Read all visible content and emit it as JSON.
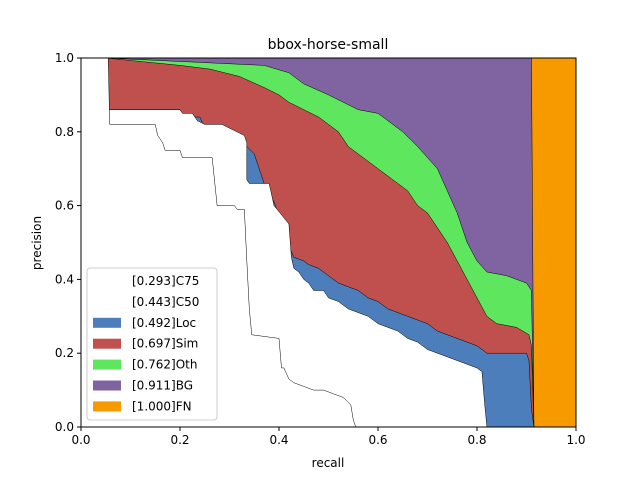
{
  "chart_data": {
    "type": "area",
    "title": "bbox-horse-small",
    "xlabel": "recall",
    "ylabel": "precision",
    "xlim": [
      0.0,
      1.0
    ],
    "ylim": [
      0.0,
      1.0
    ],
    "xticks": [
      "0.0",
      "0.2",
      "0.4",
      "0.6",
      "0.8",
      "1.0"
    ],
    "yticks": [
      "0.0",
      "0.2",
      "0.4",
      "0.6",
      "0.8",
      "1.0"
    ],
    "grid": false,
    "legend_position": "lower-left",
    "series": [
      {
        "name": "[0.293]C75",
        "color": "#ffffff",
        "points": [
          [
            0.0,
            1.0
          ],
          [
            0.055,
            1.0
          ],
          [
            0.058,
            0.82
          ],
          [
            0.15,
            0.82
          ],
          [
            0.155,
            0.79
          ],
          [
            0.165,
            0.77
          ],
          [
            0.17,
            0.75
          ],
          [
            0.2,
            0.75
          ],
          [
            0.205,
            0.73
          ],
          [
            0.21,
            0.73
          ],
          [
            0.215,
            0.73
          ],
          [
            0.265,
            0.73
          ],
          [
            0.275,
            0.6
          ],
          [
            0.31,
            0.6
          ],
          [
            0.315,
            0.59
          ],
          [
            0.33,
            0.59
          ],
          [
            0.335,
            0.45
          ],
          [
            0.34,
            0.32
          ],
          [
            0.345,
            0.25
          ],
          [
            0.4,
            0.24
          ],
          [
            0.405,
            0.16
          ],
          [
            0.41,
            0.16
          ],
          [
            0.42,
            0.13
          ],
          [
            0.43,
            0.12
          ],
          [
            0.45,
            0.11
          ],
          [
            0.47,
            0.1
          ],
          [
            0.49,
            0.1
          ],
          [
            0.51,
            0.09
          ],
          [
            0.53,
            0.08
          ],
          [
            0.545,
            0.06
          ],
          [
            0.55,
            0.02
          ],
          [
            0.555,
            0.0
          ]
        ]
      },
      {
        "name": "[0.443]C50",
        "color": "#ffffff",
        "points": [
          [
            0.0,
            1.0
          ],
          [
            0.052,
            1.0
          ],
          [
            0.055,
            0.86
          ],
          [
            0.2,
            0.86
          ],
          [
            0.205,
            0.85
          ],
          [
            0.225,
            0.85
          ],
          [
            0.235,
            0.83
          ],
          [
            0.25,
            0.82
          ],
          [
            0.27,
            0.82
          ],
          [
            0.285,
            0.82
          ],
          [
            0.33,
            0.79
          ],
          [
            0.335,
            0.77
          ],
          [
            0.335,
            0.67
          ],
          [
            0.34,
            0.66
          ],
          [
            0.38,
            0.66
          ],
          [
            0.39,
            0.6
          ],
          [
            0.42,
            0.55
          ],
          [
            0.425,
            0.46
          ],
          [
            0.43,
            0.43
          ],
          [
            0.44,
            0.42
          ],
          [
            0.45,
            0.4
          ],
          [
            0.46,
            0.39
          ],
          [
            0.47,
            0.37
          ],
          [
            0.49,
            0.37
          ],
          [
            0.5,
            0.35
          ],
          [
            0.52,
            0.34
          ],
          [
            0.54,
            0.32
          ],
          [
            0.56,
            0.31
          ],
          [
            0.58,
            0.3
          ],
          [
            0.6,
            0.28
          ],
          [
            0.62,
            0.27
          ],
          [
            0.64,
            0.26
          ],
          [
            0.66,
            0.24
          ],
          [
            0.68,
            0.23
          ],
          [
            0.7,
            0.21
          ],
          [
            0.72,
            0.2
          ],
          [
            0.74,
            0.19
          ],
          [
            0.76,
            0.18
          ],
          [
            0.78,
            0.17
          ],
          [
            0.8,
            0.16
          ],
          [
            0.81,
            0.15
          ],
          [
            0.815,
            0.07
          ],
          [
            0.82,
            0.0
          ]
        ]
      },
      {
        "name": "[0.492]Loc",
        "color": "#4c7ebb",
        "points": [
          [
            0.0,
            1.0
          ],
          [
            0.05,
            1.0
          ],
          [
            0.055,
            0.86
          ],
          [
            0.2,
            0.86
          ],
          [
            0.205,
            0.84
          ],
          [
            0.24,
            0.84
          ],
          [
            0.25,
            0.81
          ],
          [
            0.27,
            0.81
          ],
          [
            0.275,
            0.8
          ],
          [
            0.32,
            0.78
          ],
          [
            0.35,
            0.74
          ],
          [
            0.36,
            0.7
          ],
          [
            0.37,
            0.66
          ],
          [
            0.39,
            0.61
          ],
          [
            0.405,
            0.55
          ],
          [
            0.41,
            0.5
          ],
          [
            0.42,
            0.49
          ],
          [
            0.43,
            0.46
          ],
          [
            0.45,
            0.45
          ],
          [
            0.46,
            0.44
          ],
          [
            0.48,
            0.43
          ],
          [
            0.5,
            0.41
          ],
          [
            0.52,
            0.39
          ],
          [
            0.54,
            0.38
          ],
          [
            0.56,
            0.37
          ],
          [
            0.58,
            0.35
          ],
          [
            0.6,
            0.34
          ],
          [
            0.62,
            0.32
          ],
          [
            0.64,
            0.31
          ],
          [
            0.66,
            0.3
          ],
          [
            0.68,
            0.29
          ],
          [
            0.7,
            0.28
          ],
          [
            0.72,
            0.26
          ],
          [
            0.74,
            0.25
          ],
          [
            0.76,
            0.24
          ],
          [
            0.78,
            0.23
          ],
          [
            0.8,
            0.22
          ],
          [
            0.82,
            0.2
          ],
          [
            0.9,
            0.2
          ],
          [
            0.905,
            0.18
          ],
          [
            0.91,
            0.05
          ],
          [
            0.915,
            0.0
          ]
        ]
      },
      {
        "name": "[0.697]Sim",
        "color": "#c0504d",
        "points": [
          [
            0.0,
            1.0
          ],
          [
            0.05,
            1.0
          ],
          [
            0.2,
            0.98
          ],
          [
            0.26,
            0.97
          ],
          [
            0.32,
            0.95
          ],
          [
            0.37,
            0.92
          ],
          [
            0.4,
            0.9
          ],
          [
            0.42,
            0.88
          ],
          [
            0.45,
            0.86
          ],
          [
            0.48,
            0.84
          ],
          [
            0.5,
            0.82
          ],
          [
            0.52,
            0.8
          ],
          [
            0.54,
            0.76
          ],
          [
            0.56,
            0.74
          ],
          [
            0.58,
            0.72
          ],
          [
            0.6,
            0.7
          ],
          [
            0.62,
            0.68
          ],
          [
            0.64,
            0.66
          ],
          [
            0.66,
            0.64
          ],
          [
            0.68,
            0.6
          ],
          [
            0.7,
            0.58
          ],
          [
            0.72,
            0.54
          ],
          [
            0.74,
            0.5
          ],
          [
            0.76,
            0.45
          ],
          [
            0.78,
            0.4
          ],
          [
            0.8,
            0.35
          ],
          [
            0.82,
            0.3
          ],
          [
            0.84,
            0.28
          ],
          [
            0.88,
            0.27
          ],
          [
            0.905,
            0.25
          ],
          [
            0.91,
            0.22
          ],
          [
            0.915,
            0.0
          ]
        ]
      },
      {
        "name": "[0.762]Oth",
        "color": "#5ee65e",
        "points": [
          [
            0.0,
            1.0
          ],
          [
            0.05,
            1.0
          ],
          [
            0.37,
            0.98
          ],
          [
            0.42,
            0.96
          ],
          [
            0.45,
            0.93
          ],
          [
            0.5,
            0.9
          ],
          [
            0.53,
            0.88
          ],
          [
            0.56,
            0.86
          ],
          [
            0.6,
            0.85
          ],
          [
            0.62,
            0.83
          ],
          [
            0.65,
            0.8
          ],
          [
            0.68,
            0.76
          ],
          [
            0.7,
            0.73
          ],
          [
            0.72,
            0.7
          ],
          [
            0.74,
            0.64
          ],
          [
            0.76,
            0.58
          ],
          [
            0.78,
            0.5
          ],
          [
            0.8,
            0.45
          ],
          [
            0.82,
            0.42
          ],
          [
            0.86,
            0.41
          ],
          [
            0.9,
            0.39
          ],
          [
            0.91,
            0.37
          ],
          [
            0.915,
            0.0
          ]
        ]
      },
      {
        "name": "[0.911]BG",
        "color": "#8064a2",
        "points": [
          [
            0.0,
            1.0
          ],
          [
            0.91,
            1.0
          ],
          [
            0.915,
            0.0
          ]
        ]
      },
      {
        "name": "[1.000]FN",
        "color": "#f79a00",
        "points": [
          [
            0.0,
            1.0
          ],
          [
            1.0,
            1.0
          ],
          [
            1.0,
            0.0
          ]
        ]
      }
    ]
  }
}
